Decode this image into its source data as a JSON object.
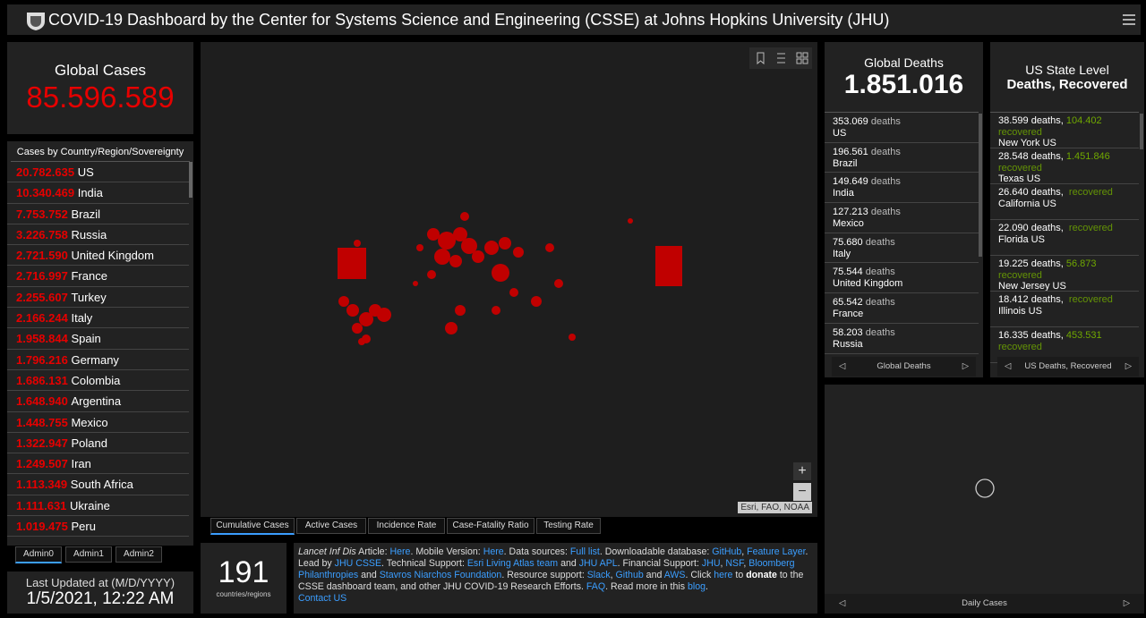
{
  "header": {
    "title": "COVID-19 Dashboard by the Center for Systems Science and Engineering (CSSE) at Johns Hopkins University (JHU)"
  },
  "global_cases": {
    "label": "Global Cases",
    "value": "85.596.589"
  },
  "cases_list": {
    "title": "Cases by Country/Region/Sovereignty",
    "rows": [
      {
        "value": "20.782.635",
        "name": "US"
      },
      {
        "value": "10.340.469",
        "name": "India"
      },
      {
        "value": "7.753.752",
        "name": "Brazil"
      },
      {
        "value": "3.226.758",
        "name": "Russia"
      },
      {
        "value": "2.721.590",
        "name": "United Kingdom"
      },
      {
        "value": "2.716.997",
        "name": "France"
      },
      {
        "value": "2.255.607",
        "name": "Turkey"
      },
      {
        "value": "2.166.244",
        "name": "Italy"
      },
      {
        "value": "1.958.844",
        "name": "Spain"
      },
      {
        "value": "1.796.216",
        "name": "Germany"
      },
      {
        "value": "1.686.131",
        "name": "Colombia"
      },
      {
        "value": "1.648.940",
        "name": "Argentina"
      },
      {
        "value": "1.448.755",
        "name": "Mexico"
      },
      {
        "value": "1.322.947",
        "name": "Poland"
      },
      {
        "value": "1.249.507",
        "name": "Iran"
      },
      {
        "value": "1.113.349",
        "name": "South Africa"
      },
      {
        "value": "1.111.631",
        "name": "Ukraine"
      },
      {
        "value": "1.019.475",
        "name": "Peru"
      }
    ]
  },
  "admin_tabs": [
    "Admin0",
    "Admin1",
    "Admin2"
  ],
  "last_updated": {
    "label": "Last Updated at (M/D/YYYY)",
    "value": "1/5/2021, 12:22 AM"
  },
  "map": {
    "tabs": [
      "Cumulative Cases",
      "Active Cases",
      "Incidence Rate",
      "Case-Fatality Ratio",
      "Testing Rate"
    ],
    "attribution": "Esri, FAO, NOAA",
    "zoom_in": "+",
    "zoom_out": "−"
  },
  "count": {
    "value": "191",
    "label": "countries/regions"
  },
  "info": {
    "paragraphs": [
      [
        {
          "text": "Lancet Inf Dis",
          "italic": true
        },
        {
          "text": " Article: "
        },
        {
          "text": "Here",
          "link": true
        },
        {
          "text": ". Mobile Version: "
        },
        {
          "text": "Here",
          "link": true
        },
        {
          "text": ". Data sources: "
        },
        {
          "text": "Full list",
          "link": true
        },
        {
          "text": ". Downloadable database: "
        },
        {
          "text": "GitHub",
          "link": true
        },
        {
          "text": ", "
        },
        {
          "text": "Feature Layer",
          "link": true
        },
        {
          "text": "."
        }
      ],
      [
        {
          "text": "Lead by "
        },
        {
          "text": "JHU CSSE",
          "link": true
        },
        {
          "text": ". Technical Support: "
        },
        {
          "text": "Esri Living Atlas team",
          "link": true
        },
        {
          "text": " and "
        },
        {
          "text": "JHU APL",
          "link": true
        },
        {
          "text": ". Financial Support: "
        },
        {
          "text": "JHU",
          "link": true
        },
        {
          "text": ", "
        },
        {
          "text": "NSF",
          "link": true
        },
        {
          "text": ", "
        },
        {
          "text": "Bloomberg Philanthropies",
          "link": true
        },
        {
          "text": " and "
        },
        {
          "text": "Stavros Niarchos Foundation",
          "link": true
        },
        {
          "text": ". Resource support: "
        },
        {
          "text": "Slack",
          "link": true
        },
        {
          "text": ", "
        },
        {
          "text": "Github",
          "link": true
        },
        {
          "text": " and "
        },
        {
          "text": "AWS",
          "link": true
        },
        {
          "text": ". Click "
        },
        {
          "text": "here",
          "link": true
        },
        {
          "text": " to "
        },
        {
          "text": "donate",
          "bold": true
        },
        {
          "text": " to the CSSE dashboard team, and other JHU COVID-19 Research Efforts. "
        },
        {
          "text": "FAQ",
          "link": true
        },
        {
          "text": ". Read more in this "
        },
        {
          "text": "blog",
          "link": true
        },
        {
          "text": "."
        }
      ],
      [
        {
          "text": "Contact US",
          "link": true
        }
      ]
    ]
  },
  "global_deaths": {
    "label": "Global Deaths",
    "value": "1.851.016",
    "unit": "deaths",
    "footer": "Global Deaths",
    "rows": [
      {
        "value": "353.069",
        "name": "US"
      },
      {
        "value": "196.561",
        "name": "Brazil"
      },
      {
        "value": "149.649",
        "name": "India"
      },
      {
        "value": "127.213",
        "name": "Mexico"
      },
      {
        "value": "75.680",
        "name": "Italy"
      },
      {
        "value": "75.544",
        "name": "United Kingdom"
      },
      {
        "value": "65.542",
        "name": "France"
      },
      {
        "value": "58.203",
        "name": "Russia"
      }
    ]
  },
  "us_state": {
    "title": "US State Level",
    "subtitle": "Deaths, Recovered",
    "recovered_label": "recovered",
    "footer": "US Deaths, Recovered",
    "rows": [
      {
        "deaths": "38.599 deaths,",
        "recovered": "104.402",
        "name": "New York US"
      },
      {
        "deaths": "28.548 deaths,",
        "recovered": "1.451.846",
        "name": "Texas US"
      },
      {
        "deaths": "26.640 deaths,",
        "name": "California US"
      },
      {
        "deaths": "22.090 deaths,",
        "name": "Florida US"
      },
      {
        "deaths": "19.225 deaths,",
        "recovered": "56.873",
        "name": "New Jersey US"
      },
      {
        "deaths": "18.412 deaths,",
        "name": "Illinois US"
      },
      {
        "deaths": "16.335 deaths,",
        "recovered": "453.531"
      }
    ]
  },
  "daily": {
    "footer": "Daily Cases"
  }
}
